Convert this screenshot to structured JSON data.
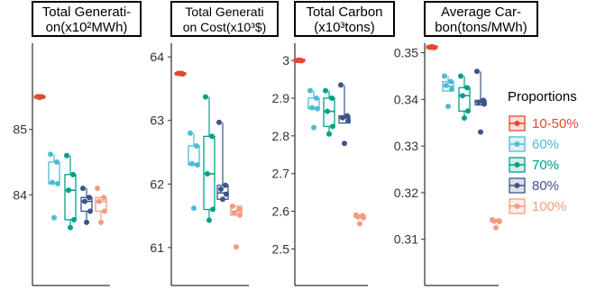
{
  "chart_data": [
    {
      "type": "box",
      "title": "Total Generati-on(x10²MWh)",
      "title_lines": [
        "Total Generati-",
        "on(x10²MWh)"
      ],
      "ylim": [
        83.0,
        86.4
      ],
      "yticks": [
        84,
        85
      ],
      "ytick_labels": [
        "84",
        "85"
      ],
      "series": [
        {
          "name": "10-50%",
          "points": [
            85.5,
            85.5,
            85.5,
            85.5,
            85.49
          ]
        },
        {
          "name": "60%",
          "box": {
            "q1": 84.17,
            "median": 84.18,
            "q3": 84.5,
            "whisker_low": 84.17,
            "whisker_high": 84.62
          },
          "points": [
            84.62,
            84.5,
            84.19,
            84.17,
            83.65
          ]
        },
        {
          "name": "70%",
          "box": {
            "q1": 83.62,
            "median": 84.07,
            "q3": 84.31,
            "whisker_low": 83.5,
            "whisker_high": 84.6
          },
          "points": [
            84.6,
            84.31,
            84.07,
            83.62,
            83.5
          ]
        },
        {
          "name": "80%",
          "box": {
            "q1": 83.75,
            "median": 83.9,
            "q3": 83.96,
            "whisker_low": 83.58,
            "whisker_high": 84.1
          },
          "points": [
            84.1,
            83.96,
            83.9,
            83.75,
            83.58
          ]
        },
        {
          "name": "100%",
          "box": {
            "q1": 83.75,
            "median": 83.9,
            "q3": 83.96,
            "whisker_low": 83.58,
            "whisker_high": 83.96
          },
          "points": [
            84.1,
            83.96,
            83.9,
            83.75,
            83.58
          ]
        }
      ]
    },
    {
      "type": "box",
      "title": "Total Generati-on Cost(x10³$)",
      "title_lines": [
        "Total Generati",
        "on Cost(x10³$)"
      ],
      "ylim": [
        60.8,
        64.3
      ],
      "yticks": [
        61,
        62,
        63,
        64
      ],
      "ytick_labels": [
        "61",
        "62",
        "63",
        "64"
      ],
      "series": [
        {
          "name": "10-50%",
          "points": [
            63.74,
            63.74,
            63.74,
            63.73,
            63.74
          ]
        },
        {
          "name": "60%",
          "box": {
            "q1": 62.3,
            "median": 62.32,
            "q3": 62.6,
            "whisker_low": 62.3,
            "whisker_high": 62.8
          },
          "points": [
            62.8,
            62.6,
            62.32,
            62.3,
            61.62
          ]
        },
        {
          "name": "70%",
          "box": {
            "q1": 61.6,
            "median": 62.16,
            "q3": 62.75,
            "whisker_low": 61.43,
            "whisker_high": 63.37
          },
          "points": [
            63.37,
            62.75,
            62.16,
            61.6,
            61.43
          ]
        },
        {
          "name": "80%",
          "box": {
            "q1": 61.76,
            "median": 61.86,
            "q3": 61.98,
            "whisker_low": 61.76,
            "whisker_high": 62.97
          },
          "points": [
            62.97,
            61.98,
            61.92,
            61.84,
            61.76
          ]
        },
        {
          "name": "100%",
          "box": {
            "q1": 61.51,
            "median": 61.57,
            "q3": 61.65,
            "whisker_low": 61.51,
            "whisker_high": 61.65
          },
          "points": [
            61.65,
            61.6,
            61.55,
            61.51,
            61.01
          ]
        }
      ]
    },
    {
      "type": "box",
      "title": "Total Carbon (x10³tons)",
      "title_lines": [
        "Total Carbon",
        "(x10³tons)"
      ],
      "ylim": [
        2.47,
        3.06
      ],
      "yticks": [
        2.5,
        2.6,
        2.7,
        2.8,
        2.9,
        3.0
      ],
      "ytick_labels": [
        "2.5",
        "2.6",
        "2.7",
        "2.8",
        "2.9",
        "3"
      ],
      "series": [
        {
          "name": "10-50%",
          "points": [
            3.0,
            3.0,
            3.0,
            2.999,
            3.001
          ]
        },
        {
          "name": "60%",
          "box": {
            "q1": 2.872,
            "median": 2.875,
            "q3": 2.9,
            "whisker_low": 2.872,
            "whisker_high": 2.92
          },
          "points": [
            2.92,
            2.9,
            2.875,
            2.872,
            2.822
          ]
        },
        {
          "name": "70%",
          "box": {
            "q1": 2.825,
            "median": 2.865,
            "q3": 2.9,
            "whisker_low": 2.805,
            "whisker_high": 2.92
          },
          "points": [
            2.92,
            2.9,
            2.865,
            2.825,
            2.805
          ]
        },
        {
          "name": "80%",
          "box": {
            "q1": 2.834,
            "median": 2.848,
            "q3": 2.853,
            "whisker_low": 2.834,
            "whisker_high": 2.935
          },
          "points": [
            2.935,
            2.853,
            2.848,
            2.84,
            2.78
          ]
        },
        {
          "name": "100%",
          "box": {
            "q1": 2.584,
            "median": 2.586,
            "q3": 2.59,
            "whisker_low": 2.584,
            "whisker_high": 2.59
          },
          "points": [
            2.59,
            2.588,
            2.585,
            2.583,
            2.567
          ]
        }
      ]
    },
    {
      "type": "box",
      "title": "Average Car-bon(tons/MWh)",
      "title_lines": [
        "Average Car-",
        "bon(tons/MWh)"
      ],
      "ylim": [
        0.3055,
        0.3532
      ],
      "yticks": [
        0.31,
        0.32,
        0.33,
        0.34,
        0.35
      ],
      "ytick_labels": [
        "0.31",
        "0.32",
        "0.33",
        "0.34",
        "0.35"
      ],
      "series": [
        {
          "name": "10-50%",
          "points": [
            0.3512,
            0.3512,
            0.3512,
            0.3511,
            0.3513
          ]
        },
        {
          "name": "60%",
          "box": {
            "q1": 0.3418,
            "median": 0.3428,
            "q3": 0.3438,
            "whisker_low": 0.3418,
            "whisker_high": 0.345
          },
          "points": [
            0.345,
            0.3438,
            0.343,
            0.3422,
            0.3385
          ]
        },
        {
          "name": "70%",
          "box": {
            "q1": 0.3375,
            "median": 0.3408,
            "q3": 0.3425,
            "whisker_low": 0.336,
            "whisker_high": 0.345
          },
          "points": [
            0.345,
            0.3425,
            0.3408,
            0.3375,
            0.336
          ]
        },
        {
          "name": "80%",
          "box": {
            "q1": 0.3388,
            "median": 0.3394,
            "q3": 0.3398,
            "whisker_low": 0.3388,
            "whisker_high": 0.346
          },
          "points": [
            0.346,
            0.3398,
            0.3394,
            0.339,
            0.333
          ]
        },
        {
          "name": "100%",
          "box": {
            "q1": 0.3138,
            "median": 0.314,
            "q3": 0.3142,
            "whisker_low": 0.3138,
            "whisker_high": 0.3142
          },
          "points": [
            0.3142,
            0.314,
            0.3139,
            0.3138,
            0.3125
          ]
        }
      ]
    }
  ],
  "legend": {
    "title": "Proportions",
    "placement": "right",
    "items": [
      {
        "label": "10-50%",
        "color": "#E04A2F"
      },
      {
        "label": "60%",
        "color": "#4DBBD5"
      },
      {
        "label": "70%",
        "color": "#00A087"
      },
      {
        "label": "80%",
        "color": "#3C5488"
      },
      {
        "label": "100%",
        "color": "#F39B7F"
      }
    ]
  },
  "colors": {
    "10-50%": "#E04A2F",
    "60%": "#4DBBD5",
    "70%": "#00A087",
    "80%": "#3C5488",
    "100%": "#F39B7F"
  },
  "grid": false
}
